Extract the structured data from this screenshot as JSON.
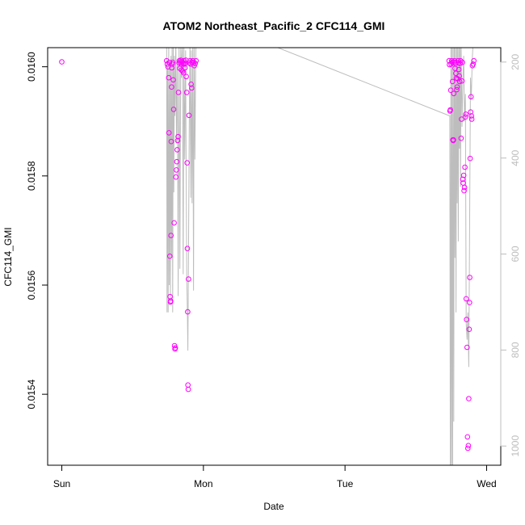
{
  "chart_data": {
    "type": "scatter",
    "title": "ATOM2 Northeast_Pacific_2 CFC114_GMI",
    "xlabel": "Date",
    "ylabel": "CFC114_GMI",
    "x_ticks": [
      "Sun",
      "Mon",
      "Tue",
      "Wed"
    ],
    "xlim": [
      -0.1,
      3.1
    ],
    "ylim": [
      0.01527,
      0.016035
    ],
    "y_ticks": [
      0.0154,
      0.0156,
      0.0158,
      0.016
    ],
    "y_tick_labels": [
      "0.0154",
      "0.0156",
      "0.0158",
      "0.0160"
    ],
    "y2lim": [
      1040,
      170
    ],
    "y2_ticks": [
      200,
      400,
      600,
      800,
      1000
    ],
    "y2_tick_labels": [
      "200",
      "400",
      "600",
      "800",
      "1000"
    ],
    "grid": false,
    "colors": {
      "points": "#ff00ff",
      "line": "#bdbdbd",
      "axis": "#000000",
      "axis_right": "#bdbdbd"
    },
    "series": [
      {
        "role": "points",
        "points": [
          [
            0.0,
            0.016009
          ],
          [
            0.74,
            0.016011
          ],
          [
            0.745,
            0.016005
          ],
          [
            0.75,
            0.016
          ],
          [
            0.755,
            0.01598
          ],
          [
            0.757,
            0.015879
          ],
          [
            0.76,
            0.016008
          ],
          [
            0.763,
            0.015653
          ],
          [
            0.765,
            0.015579
          ],
          [
            0.767,
            0.015569
          ],
          [
            0.769,
            0.015571
          ],
          [
            0.771,
            0.015691
          ],
          [
            0.773,
            0.015863
          ],
          [
            0.775,
            0.015963
          ],
          [
            0.777,
            0.015998
          ],
          [
            0.78,
            0.016005
          ],
          [
            0.783,
            0.016008
          ],
          [
            0.787,
            0.015976
          ],
          [
            0.79,
            0.015922
          ],
          [
            0.793,
            0.015714
          ],
          [
            0.796,
            0.015489
          ],
          [
            0.799,
            0.015483
          ],
          [
            0.802,
            0.015485
          ],
          [
            0.806,
            0.015798
          ],
          [
            0.809,
            0.015811
          ],
          [
            0.812,
            0.015826
          ],
          [
            0.815,
            0.015848
          ],
          [
            0.818,
            0.015865
          ],
          [
            0.821,
            0.015872
          ],
          [
            0.824,
            0.015953
          ],
          [
            0.828,
            0.016007
          ],
          [
            0.83,
            0.016011
          ],
          [
            0.833,
            0.015997
          ],
          [
            0.836,
            0.016009
          ],
          [
            0.84,
            0.016012
          ],
          [
            0.843,
            0.016005
          ],
          [
            0.846,
            0.015994
          ],
          [
            0.85,
            0.016009
          ],
          [
            0.853,
            0.015992
          ],
          [
            0.856,
            0.016006
          ],
          [
            0.86,
            0.015989
          ],
          [
            0.863,
            0.016011
          ],
          [
            0.866,
            0.016005
          ],
          [
            0.87,
            0.015998
          ],
          [
            0.873,
            0.016007
          ],
          [
            0.876,
            0.016012
          ],
          [
            0.879,
            0.015982
          ],
          [
            0.882,
            0.015953
          ],
          [
            0.885,
            0.015824
          ],
          [
            0.887,
            0.015667
          ],
          [
            0.889,
            0.015551
          ],
          [
            0.891,
            0.015417
          ],
          [
            0.893,
            0.015409
          ],
          [
            0.895,
            0.015611
          ],
          [
            0.898,
            0.015911
          ],
          [
            0.901,
            0.016007
          ],
          [
            0.905,
            0.016011
          ],
          [
            0.909,
            0.016005
          ],
          [
            0.913,
            0.015968
          ],
          [
            0.917,
            0.015961
          ],
          [
            0.921,
            0.016008
          ],
          [
            0.925,
            0.016011
          ],
          [
            0.93,
            0.016007
          ],
          [
            0.936,
            0.016002
          ],
          [
            0.942,
            0.016006
          ],
          [
            0.948,
            0.016011
          ],
          [
            2.735,
            0.016011
          ],
          [
            2.738,
            0.016004
          ],
          [
            2.741,
            0.015919
          ],
          [
            2.744,
            0.015921
          ],
          [
            2.747,
            0.015957
          ],
          [
            2.75,
            0.016005
          ],
          [
            2.753,
            0.016011
          ],
          [
            2.756,
            0.016008
          ],
          [
            2.759,
            0.015973
          ],
          [
            2.762,
            0.015866
          ],
          [
            2.764,
            0.015865
          ],
          [
            2.766,
            0.015866
          ],
          [
            2.768,
            0.015951
          ],
          [
            2.771,
            0.016008
          ],
          [
            2.774,
            0.016011
          ],
          [
            2.777,
            0.015997
          ],
          [
            2.78,
            0.016006
          ],
          [
            2.783,
            0.015988
          ],
          [
            2.786,
            0.015979
          ],
          [
            2.789,
            0.015958
          ],
          [
            2.792,
            0.015963
          ],
          [
            2.795,
            0.015978
          ],
          [
            2.798,
            0.016011
          ],
          [
            2.801,
            0.016007
          ],
          [
            2.804,
            0.015995
          ],
          [
            2.807,
            0.015983
          ],
          [
            2.81,
            0.015973
          ],
          [
            2.813,
            0.016006
          ],
          [
            2.816,
            0.016011
          ],
          [
            2.82,
            0.015869
          ],
          [
            2.823,
            0.015904
          ],
          [
            2.826,
            0.015974
          ],
          [
            2.829,
            0.016008
          ],
          [
            2.832,
            0.015794
          ],
          [
            2.835,
            0.015787
          ],
          [
            2.838,
            0.015801
          ],
          [
            2.841,
            0.015773
          ],
          [
            2.844,
            0.015779
          ],
          [
            2.847,
            0.015816
          ],
          [
            2.85,
            0.015908
          ],
          [
            2.853,
            0.015913
          ],
          [
            2.856,
            0.015575
          ],
          [
            2.859,
            0.015537
          ],
          [
            2.862,
            0.015486
          ],
          [
            2.865,
            0.015322
          ],
          [
            2.868,
            0.015301
          ],
          [
            2.871,
            0.015306
          ],
          [
            2.874,
            0.015392
          ],
          [
            2.877,
            0.015519
          ],
          [
            2.879,
            0.015568
          ],
          [
            2.881,
            0.015614
          ],
          [
            2.884,
            0.015832
          ],
          [
            2.887,
            0.015917
          ],
          [
            2.89,
            0.015945
          ],
          [
            2.893,
            0.01591
          ],
          [
            2.895,
            0.015904
          ],
          [
            2.9,
            0.016002
          ],
          [
            2.905,
            0.016005
          ],
          [
            2.91,
            0.016011
          ]
        ]
      },
      {
        "role": "line",
        "points": [
          [
            0.74,
            0.01605
          ],
          [
            0.743,
            0.01555
          ],
          [
            0.747,
            0.016
          ],
          [
            0.751,
            0.01555
          ],
          [
            0.755,
            0.01605
          ],
          [
            0.759,
            0.0156
          ],
          [
            0.763,
            0.01601
          ],
          [
            0.767,
            0.01557
          ],
          [
            0.771,
            0.01602
          ],
          [
            0.775,
            0.01565
          ],
          [
            0.779,
            0.01605
          ],
          [
            0.783,
            0.01555
          ],
          [
            0.787,
            0.01605
          ],
          [
            0.791,
            0.01577
          ],
          [
            0.795,
            0.01602
          ],
          [
            0.799,
            0.01591
          ],
          [
            0.805,
            0.01605
          ],
          [
            0.81,
            0.01586
          ],
          [
            0.816,
            0.01601
          ],
          [
            0.822,
            0.01558
          ],
          [
            0.828,
            0.01605
          ],
          [
            0.834,
            0.01563
          ],
          [
            0.84,
            0.01604
          ],
          [
            0.846,
            0.01598
          ],
          [
            0.852,
            0.01605
          ],
          [
            0.857,
            0.01562
          ],
          [
            0.862,
            0.01604
          ],
          [
            0.868,
            0.01583
          ],
          [
            0.874,
            0.01603
          ],
          [
            0.878,
            0.0158
          ],
          [
            0.882,
            0.01562
          ],
          [
            0.886,
            0.01556
          ],
          [
            0.89,
            0.01548
          ],
          [
            0.895,
            0.01566
          ],
          [
            0.9,
            0.01589
          ],
          [
            0.905,
            0.01605
          ],
          [
            0.91,
            0.01576
          ],
          [
            0.915,
            0.01603
          ],
          [
            0.92,
            0.01575
          ],
          [
            0.925,
            0.01605
          ],
          [
            0.93,
            0.01559
          ],
          [
            0.935,
            0.01605
          ],
          [
            0.94,
            0.01583
          ],
          [
            0.945,
            0.016
          ],
          [
            0.948,
            0.01605
          ],
          [
            1.38,
            0.01605
          ],
          [
            2.74,
            0.01591
          ],
          [
            2.744,
            0.0152
          ],
          [
            2.748,
            0.01605
          ],
          [
            2.752,
            0.0152
          ],
          [
            2.756,
            0.01605
          ],
          [
            2.76,
            0.01525
          ],
          [
            2.764,
            0.01605
          ],
          [
            2.768,
            0.01535
          ],
          [
            2.772,
            0.01605
          ],
          [
            2.776,
            0.01565
          ],
          [
            2.78,
            0.01605
          ],
          [
            2.784,
            0.01555
          ],
          [
            2.788,
            0.01605
          ],
          [
            2.792,
            0.01575
          ],
          [
            2.796,
            0.01605
          ],
          [
            2.8,
            0.01568
          ],
          [
            2.804,
            0.01605
          ],
          [
            2.808,
            0.01585
          ],
          [
            2.812,
            0.01605
          ],
          [
            2.816,
            0.01578
          ],
          [
            2.82,
            0.01605
          ],
          [
            2.826,
            0.01589
          ],
          [
            2.832,
            0.01597
          ],
          [
            2.838,
            0.01602
          ],
          [
            2.844,
            0.0159
          ],
          [
            2.85,
            0.01595
          ],
          [
            2.856,
            0.01553
          ],
          [
            2.862,
            0.0155
          ],
          [
            2.868,
            0.01555
          ],
          [
            2.874,
            0.01545
          ],
          [
            2.88,
            0.0157
          ],
          [
            2.886,
            0.01598
          ],
          [
            2.892,
            0.01594
          ],
          [
            2.898,
            0.01601
          ],
          [
            2.904,
            0.01604
          ],
          [
            2.91,
            0.01605
          ]
        ]
      }
    ]
  }
}
